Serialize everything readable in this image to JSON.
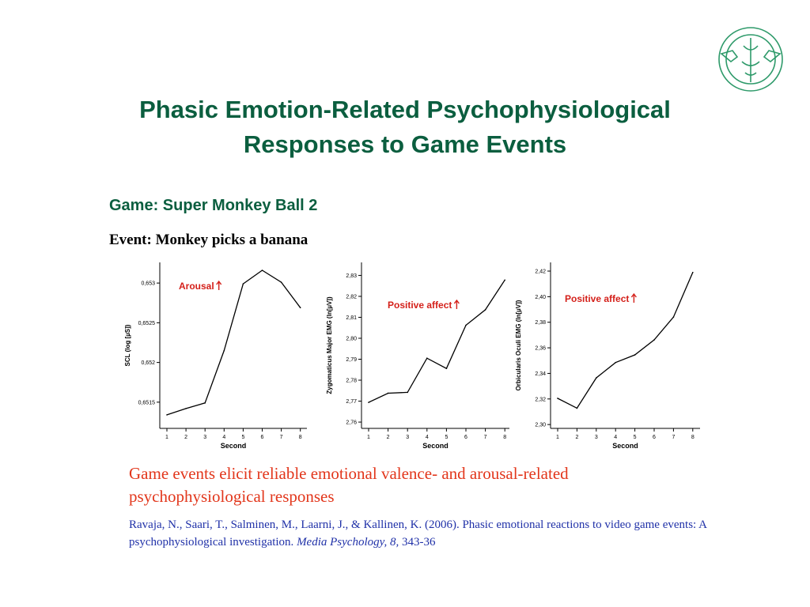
{
  "slide": {
    "title_line1": "Phasic Emotion-Related Psychophysiological",
    "title_line2": "Responses to Game Events",
    "game": "Game: Super Monkey Ball 2",
    "event": "Event: Monkey picks a banana",
    "conclusion_line1": "Game events elicit reliable emotional valence- and arousal-related",
    "conclusion_line2": "psychophysiological responses",
    "citation_part1": "Ravaja, N., Saari, T., Salminen, M., Laarni, J., & Kallinen, K. (2006). Phasic emotional reactions to video game events: A psychophysiological investigation.",
    "citation_journal": "Media Psychology, 8,",
    "citation_pages": "343-36"
  },
  "logo": {
    "name": "university-logo",
    "color": "#2e9a6a"
  },
  "colors": {
    "title": "#0b5e3f",
    "annotation": "#d4201a",
    "conclusion": "#e2361b",
    "citation": "#2031a8"
  },
  "chart_data": [
    {
      "type": "line",
      "xlabel": "Second",
      "ylabel": "SCL (log [µS])",
      "annotation": "Arousal",
      "x": [
        1,
        2,
        3,
        4,
        5,
        6,
        7,
        8
      ],
      "values": [
        0.65134,
        0.65142,
        0.65149,
        0.65215,
        0.65299,
        0.65316,
        0.65301,
        0.65269
      ],
      "ylim": [
        0.65117,
        0.65326
      ],
      "yticks": [
        0.6515,
        0.652,
        0.6525,
        0.653
      ],
      "ytick_labels": [
        "0,6515",
        "0,652",
        "0,6525",
        "0,653"
      ],
      "xticks": [
        1,
        2,
        3,
        4,
        5,
        6,
        7,
        8
      ],
      "xtick_labels": [
        "1",
        "2",
        "3",
        "4",
        "5",
        "6",
        "7",
        "8"
      ]
    },
    {
      "type": "line",
      "xlabel": "Second",
      "ylabel": "Zygomaticus Major EMG (ln[µV])",
      "annotation": "Positive affect",
      "x": [
        1,
        2,
        3,
        4,
        5,
        6,
        7,
        8
      ],
      "values": [
        2.7694,
        2.7738,
        2.7742,
        2.7905,
        2.7856,
        2.8062,
        2.8136,
        2.8278
      ],
      "ylim": [
        2.757,
        2.8362
      ],
      "yticks": [
        2.76,
        2.77,
        2.78,
        2.79,
        2.8,
        2.81,
        2.82,
        2.83
      ],
      "ytick_labels": [
        "2,76",
        "2,77",
        "2,78",
        "2,79",
        "2,80",
        "2,81",
        "2,82",
        "2,83"
      ],
      "xticks": [
        1,
        2,
        3,
        4,
        5,
        6,
        7,
        8
      ],
      "xtick_labels": [
        "1",
        "2",
        "3",
        "4",
        "5",
        "6",
        "7",
        "8"
      ]
    },
    {
      "type": "line",
      "xlabel": "Second",
      "ylabel": "Orbicularis Oculi EMG (ln[µV])",
      "annotation": "Positive affect",
      "x": [
        1,
        2,
        3,
        4,
        5,
        6,
        7,
        8
      ],
      "values": [
        2.3205,
        2.3128,
        2.3365,
        2.3485,
        2.3545,
        2.3662,
        2.384,
        2.419
      ],
      "ylim": [
        2.297,
        2.4268
      ],
      "yticks": [
        2.3,
        2.32,
        2.34,
        2.36,
        2.38,
        2.4,
        2.42
      ],
      "ytick_labels": [
        "2,30",
        "2,32",
        "2,34",
        "2,36",
        "2,38",
        "2,40",
        "2,42"
      ],
      "xticks": [
        1,
        2,
        3,
        4,
        5,
        6,
        7,
        8
      ],
      "xtick_labels": [
        "1",
        "2",
        "3",
        "4",
        "5",
        "6",
        "7",
        "8"
      ]
    }
  ]
}
